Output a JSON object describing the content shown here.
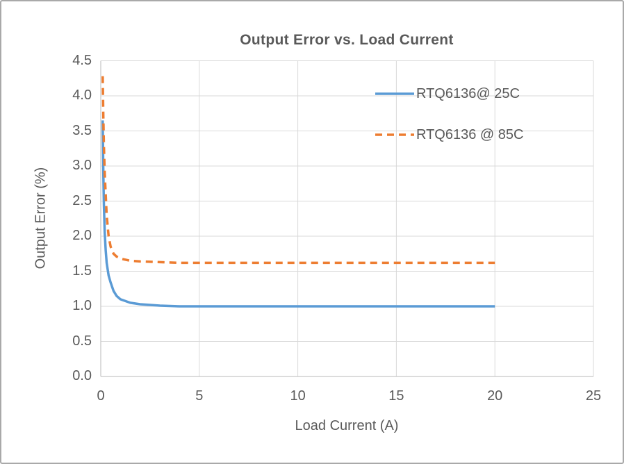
{
  "chart_data": {
    "type": "line",
    "title": "Output Error vs. Load Current",
    "xlabel": "Load Current (A)",
    "ylabel": "Output Error (%)",
    "xlim": [
      0,
      25
    ],
    "ylim": [
      0,
      4.5
    ],
    "x_ticks": [
      0,
      5,
      10,
      15,
      20,
      25
    ],
    "y_ticks": [
      0.0,
      0.5,
      1.0,
      1.5,
      2.0,
      2.5,
      3.0,
      3.5,
      4.0,
      4.5
    ],
    "grid": true,
    "legend_position": "upper-right-inside",
    "colors": {
      "gridline": "#d9d9d9",
      "axis_line": "#c6c6c6",
      "text": "#595959",
      "background": "#ffffff",
      "frame_border": "#a9a9a9"
    },
    "series": [
      {
        "name": "RTQ6136@ 25C",
        "color": "#5b9bd5",
        "style": "solid",
        "stroke_width": 3.5,
        "points": [
          [
            0.1,
            3.65
          ],
          [
            0.13,
            2.9
          ],
          [
            0.16,
            2.45
          ],
          [
            0.2,
            2.05
          ],
          [
            0.25,
            1.8
          ],
          [
            0.3,
            1.62
          ],
          [
            0.4,
            1.44
          ],
          [
            0.5,
            1.34
          ],
          [
            0.65,
            1.22
          ],
          [
            0.8,
            1.15
          ],
          [
            1,
            1.1
          ],
          [
            1.5,
            1.05
          ],
          [
            2,
            1.03
          ],
          [
            3,
            1.01
          ],
          [
            4,
            1.0
          ],
          [
            5,
            1.0
          ],
          [
            7.5,
            1.0
          ],
          [
            10,
            1.0
          ],
          [
            15,
            1.0
          ],
          [
            20,
            1.0
          ]
        ]
      },
      {
        "name": "RTQ6136 @ 85C",
        "color": "#ed7d31",
        "style": "dashed",
        "stroke_width": 3.5,
        "points": [
          [
            0.1,
            4.28
          ],
          [
            0.13,
            3.7
          ],
          [
            0.16,
            3.3
          ],
          [
            0.2,
            2.9
          ],
          [
            0.25,
            2.6
          ],
          [
            0.3,
            2.3
          ],
          [
            0.4,
            2.0
          ],
          [
            0.5,
            1.85
          ],
          [
            0.65,
            1.75
          ],
          [
            0.8,
            1.71
          ],
          [
            1,
            1.68
          ],
          [
            1.5,
            1.65
          ],
          [
            2,
            1.64
          ],
          [
            3,
            1.63
          ],
          [
            4,
            1.62
          ],
          [
            5,
            1.62
          ],
          [
            7.5,
            1.62
          ],
          [
            10,
            1.62
          ],
          [
            15,
            1.62
          ],
          [
            20,
            1.62
          ]
        ]
      }
    ]
  }
}
